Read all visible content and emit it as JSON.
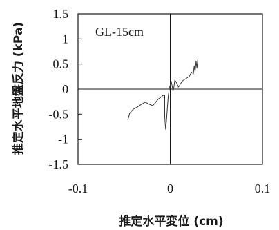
{
  "chart_data": {
    "type": "line",
    "title": "",
    "annotation": "GL-15cm",
    "xlabel": "推定水平変位 (cm)",
    "ylabel": "推定水平地盤反力 (kPa)",
    "xlim": [
      -0.1,
      0.1
    ],
    "ylim": [
      -1.5,
      1.5
    ],
    "x_ticks": [
      -0.1,
      0,
      0.1
    ],
    "x_tick_labels": [
      "-0.1",
      "0",
      "0.1"
    ],
    "y_ticks": [
      1.5,
      1,
      0.5,
      0,
      -0.5,
      -1,
      -1.5
    ],
    "y_tick_labels": [
      "1.5",
      "1",
      "0.5",
      "0",
      "-0.5",
      "-1",
      "-1.5"
    ],
    "grid": false,
    "zero_lines": true,
    "series": [
      {
        "values": [
          [
            -0.046,
            -0.62
          ],
          [
            -0.044,
            -0.48
          ],
          [
            -0.04,
            -0.4
          ],
          [
            -0.036,
            -0.36
          ],
          [
            -0.031,
            -0.3
          ],
          [
            -0.027,
            -0.26
          ],
          [
            -0.023,
            -0.3
          ],
          [
            -0.019,
            -0.33
          ],
          [
            -0.016,
            -0.27
          ],
          [
            -0.013,
            -0.2
          ],
          [
            -0.01,
            -0.16
          ],
          [
            -0.008,
            -0.13
          ],
          [
            -0.006,
            -0.12
          ],
          [
            -0.006,
            -0.55
          ],
          [
            -0.005,
            -0.8
          ],
          [
            -0.004,
            -0.6
          ],
          [
            -0.003,
            -0.34
          ],
          [
            -0.002,
            -0.12
          ],
          [
            -0.001,
            0.02
          ],
          [
            0.0,
            0.08
          ],
          [
            0.001,
            0.16
          ],
          [
            0.002,
            0.07
          ],
          [
            0.003,
            -0.04
          ],
          [
            0.004,
            0.04
          ],
          [
            0.005,
            0.18
          ],
          [
            0.007,
            0.12
          ],
          [
            0.009,
            0.04
          ],
          [
            0.011,
            0.1
          ],
          [
            0.013,
            0.16
          ],
          [
            0.016,
            0.2
          ],
          [
            0.018,
            0.22
          ],
          [
            0.021,
            0.26
          ],
          [
            0.023,
            0.34
          ],
          [
            0.025,
            0.3
          ],
          [
            0.026,
            0.46
          ],
          [
            0.027,
            0.34
          ],
          [
            0.028,
            0.56
          ],
          [
            0.029,
            0.42
          ],
          [
            0.03,
            0.62
          ]
        ]
      }
    ]
  }
}
